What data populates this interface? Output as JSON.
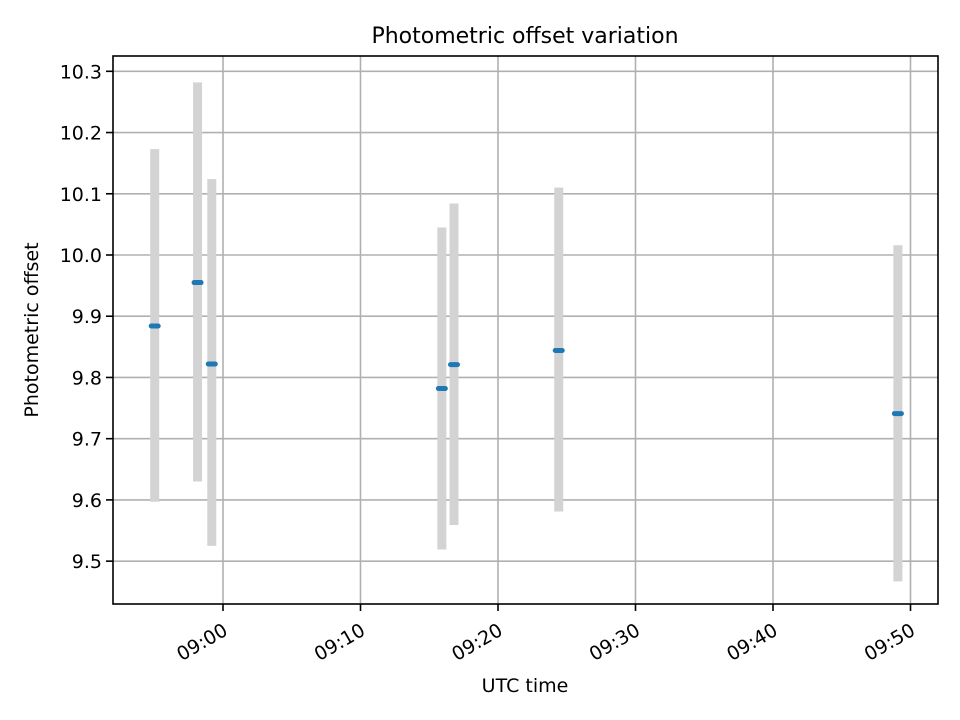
{
  "chart_data": {
    "type": "scatter",
    "title": "Photometric offset variation",
    "xlabel": "UTC time",
    "ylabel": "Photometric offset",
    "xlim": [
      "08:52",
      "09:52"
    ],
    "ylim": [
      9.43,
      10.325
    ],
    "x_ticks": [
      "09:00",
      "09:10",
      "09:20",
      "09:30",
      "09:40",
      "09:50"
    ],
    "y_ticks": [
      9.5,
      9.6,
      9.7,
      9.8,
      9.9,
      10.0,
      10.1,
      10.2,
      10.3
    ],
    "y_tick_labels": [
      "9.5",
      "9.6",
      "9.7",
      "9.8",
      "9.9",
      "10.0",
      "10.1",
      "10.2",
      "10.3"
    ],
    "grid": true,
    "legend": "none",
    "series": [
      {
        "points": [
          {
            "x": "08:55:02",
            "y": 9.884,
            "ylow": 9.597,
            "yhigh": 10.173
          },
          {
            "x": "08:58:09",
            "y": 9.955,
            "ylow": 9.63,
            "yhigh": 10.282
          },
          {
            "x": "08:59:11",
            "y": 9.822,
            "ylow": 9.525,
            "yhigh": 10.124
          },
          {
            "x": "09:15:55",
            "y": 9.782,
            "ylow": 9.519,
            "yhigh": 10.045
          },
          {
            "x": "09:16:48",
            "y": 9.821,
            "ylow": 9.559,
            "yhigh": 10.084
          },
          {
            "x": "09:24:25",
            "y": 9.844,
            "ylow": 9.581,
            "yhigh": 10.11
          },
          {
            "x": "09:49:05",
            "y": 9.741,
            "ylow": 9.467,
            "yhigh": 10.016
          }
        ]
      }
    ],
    "colors": {
      "marker": "#1f77b4",
      "errorbar": "#d3d3d3",
      "grid": "#b0b0b0"
    }
  }
}
